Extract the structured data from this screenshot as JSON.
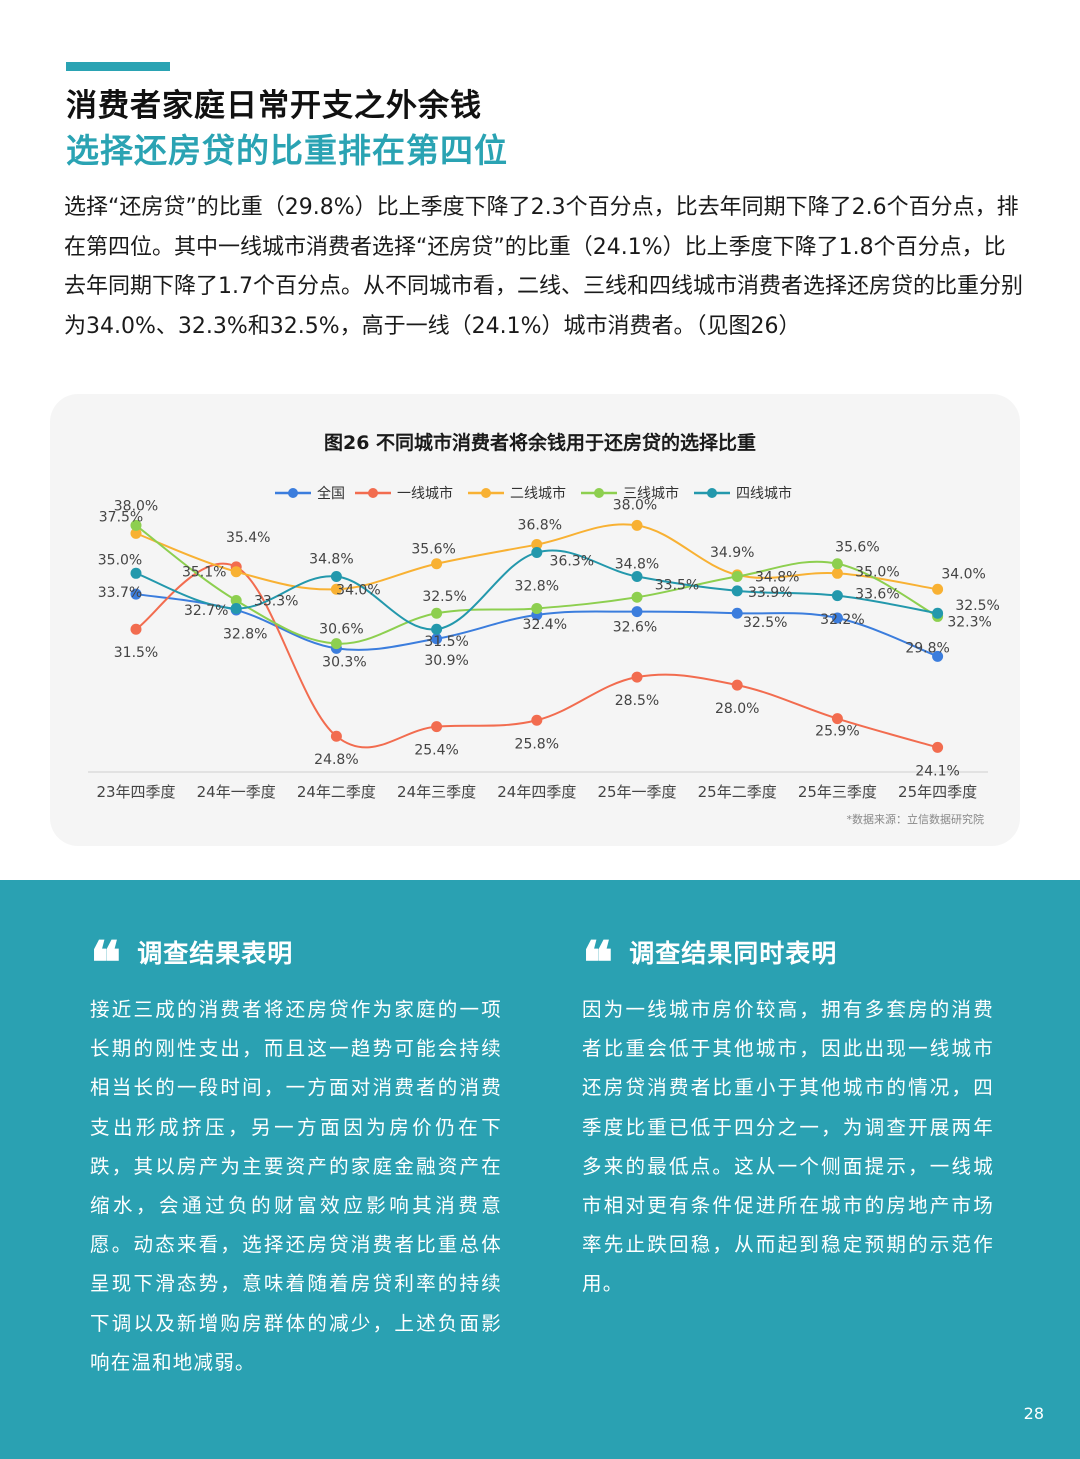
{
  "header": {
    "title_line1": "消费者家庭日常开支之外余钱",
    "title_line2": "选择还房贷的比重排在第四位"
  },
  "intro": "选择“还房贷”的比重（29.8%）比上季度下降了2.3个百分点，比去年同期下降了2.6个百分点，排在第四位。其中一线城市消费者选择“还房贷”的比重（24.1%）比上季度下降了1.8个百分点，比去年同期下降了1.7个百分点。从不同城市看，二线、三线和四线城市消费者选择还房贷的比重分别为34.0%、32.3%和32.5%，高于一线（24.1%）城市消费者。（见图26）",
  "chart": {
    "title": "图26 不同城市消费者将余钱用于还房贷的选择比重",
    "source": "*数据来源：立信数据研究院"
  },
  "chart_data": {
    "type": "line",
    "title": "图26 不同城市消费者将余钱用于还房贷的选择比重",
    "categories": [
      "23年四季度",
      "24年一季度",
      "24年二季度",
      "24年三季度",
      "24年四季度",
      "25年一季度",
      "25年二季度",
      "25年三季度",
      "25年四季度"
    ],
    "series": [
      {
        "name": "全国",
        "color": "#3b7ddd",
        "values": [
          33.7,
          32.7,
          30.3,
          30.9,
          32.4,
          32.6,
          32.5,
          32.2,
          29.8
        ]
      },
      {
        "name": "一线城市",
        "color": "#f26c4f",
        "values": [
          31.5,
          35.4,
          24.8,
          25.4,
          25.8,
          28.5,
          28.0,
          25.9,
          24.1
        ]
      },
      {
        "name": "二线城市",
        "color": "#f8b133",
        "values": [
          37.5,
          35.1,
          34.0,
          35.6,
          36.8,
          38.0,
          34.9,
          35.0,
          34.0
        ]
      },
      {
        "name": "三线城市",
        "color": "#8dcf4f",
        "values": [
          38.0,
          33.3,
          30.6,
          32.5,
          32.8,
          33.5,
          34.8,
          35.6,
          32.3
        ]
      },
      {
        "name": "四线城市",
        "color": "#2398ac",
        "values": [
          35.0,
          32.8,
          34.8,
          31.5,
          36.3,
          34.8,
          33.9,
          33.6,
          32.5
        ]
      }
    ],
    "ylim": [
      22,
      40
    ],
    "xlabel": "",
    "ylabel": "",
    "legend": "top-center",
    "grid": false
  },
  "left": {
    "title": "调查结果表明",
    "text": "接近三成的消费者将还房贷作为家庭的一项长期的刚性支出，而且这一趋势可能会持续相当长的一段时间，一方面对消费者的消费支出形成挤压，另一方面因为房价仍在下跌，其以房产为主要资产的家庭金融资产在缩水，会通过负的财富效应影响其消费意愿。动态来看，选择还房贷消费者比重总体呈现下滑态势，意味着随着房贷利率的持续下调以及新增购房群体的减少，上述负面影响在温和地减弱。"
  },
  "right": {
    "title": "调查结果同时表明",
    "text": "因为一线城市房价较高，拥有多套房的消费者比重会低于其他城市，因此出现一线城市还房贷消费者比重小于其他城市的情况，四季度比重已低于四分之一，为调查开展两年多来的最低点。这从一个侧面提示，一线城市相对更有条件促进所在城市的房地产市场率先止跌回稳，从而起到稳定预期的示范作用。"
  },
  "quote_glyph": "❝",
  "page_number": "28"
}
